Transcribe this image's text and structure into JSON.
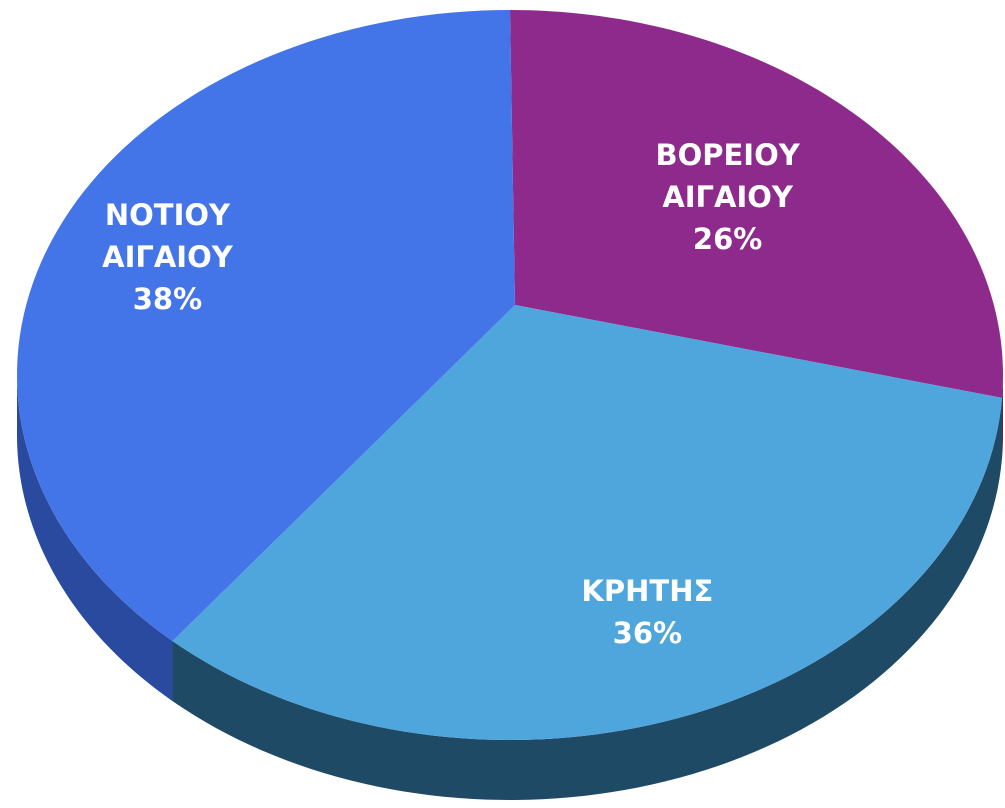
{
  "chart_data": {
    "type": "pie",
    "categories": [
      "ΒΟΡΕΙΟΥ ΑΙΓΑΙΟΥ",
      "ΚΡΗΤΗΣ",
      "ΝΟΤΙΟΥ ΑΙΓΑΙΟΥ"
    ],
    "values": [
      26,
      36,
      38
    ],
    "value_labels": [
      "26%",
      "36%",
      "38%"
    ],
    "colors": [
      "#8e2a8c",
      "#4ea6dc",
      "#4475e8"
    ],
    "side_colors": [
      "#5a1a58",
      "#1f4a66",
      "#2a4aa0"
    ]
  }
}
